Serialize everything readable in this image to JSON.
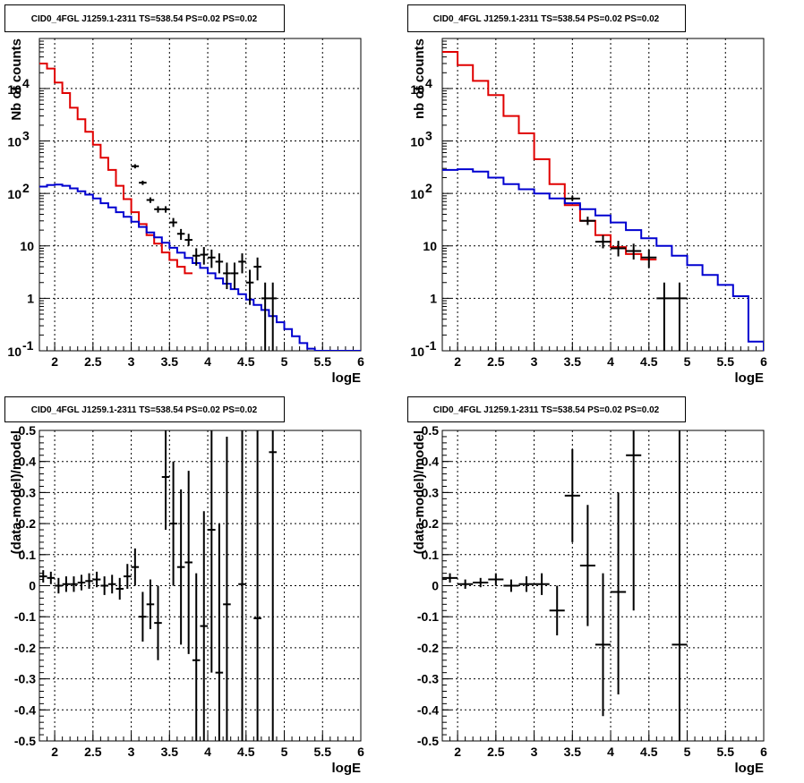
{
  "chart_data": [
    {
      "id": "top-left",
      "type": "line",
      "title": "CID0_4FGL J1259.1-2311 TS=538.54 PS=0.02 PS=0.02",
      "xlabel": "logE",
      "ylabel": "Nb of counts",
      "log_y": true,
      "grid": true,
      "xlim": [
        1.8,
        6.0
      ],
      "ylim": [
        0.1,
        90000
      ],
      "x_ticks": [
        "2",
        "2.5",
        "3",
        "3.5",
        "4",
        "4.5",
        "5",
        "5.5",
        "6"
      ],
      "y_ticks": [
        "10^-1",
        "1",
        "10",
        "10^2",
        "10^3",
        "10^4"
      ],
      "bin_edges": [
        1.8,
        1.9,
        2.0,
        2.1,
        2.2,
        2.3,
        2.4,
        2.5,
        2.6,
        2.7,
        2.8,
        2.9,
        3.0,
        3.1,
        3.2,
        3.3,
        3.4,
        3.5,
        3.6,
        3.7,
        3.8,
        3.9,
        4.0,
        4.1,
        4.2,
        4.3,
        4.4,
        4.5,
        4.6,
        4.7,
        4.8,
        4.9,
        5.0,
        5.1,
        5.2,
        5.3,
        5.4,
        5.5,
        5.6,
        5.7,
        5.8,
        5.9,
        6.0
      ],
      "series": [
        {
          "role": "total-model",
          "color": "#e00000",
          "values": [
            30000,
            24000,
            13000,
            8200,
            4300,
            2600,
            1500,
            850,
            480,
            280,
            140,
            78,
            44,
            26,
            16,
            11,
            7.5,
            5.4,
            4.0,
            3.0
          ]
        },
        {
          "role": "background-model",
          "color": "#0000d0",
          "values": [
            135,
            145,
            148,
            140,
            125,
            110,
            95,
            80,
            65,
            54,
            44,
            36,
            29,
            23,
            18,
            14.5,
            11.5,
            9.2,
            7.4,
            5.9,
            4.7,
            3.8,
            3.0,
            2.4,
            1.9,
            1.5,
            1.2,
            0.95,
            0.75,
            0.6,
            0.46,
            0.35,
            0.26,
            0.19,
            0.14,
            0.11,
            0.1,
            0.1,
            0.1,
            0.1,
            0.1,
            0.1
          ]
        },
        {
          "role": "data",
          "color": "#000000",
          "points": [
            {
              "x": 3.05,
              "xerr": 0.05,
              "y": 330,
              "ylo": 300,
              "yhi": 360
            },
            {
              "x": 3.15,
              "xerr": 0.05,
              "y": 160,
              "ylo": 145,
              "yhi": 175
            },
            {
              "x": 3.25,
              "xerr": 0.05,
              "y": 75,
              "ylo": 66,
              "yhi": 84
            },
            {
              "x": 3.35,
              "xerr": 0.05,
              "y": 50,
              "ylo": 43,
              "yhi": 57
            },
            {
              "x": 3.45,
              "xerr": 0.05,
              "y": 50,
              "ylo": 43,
              "yhi": 57
            },
            {
              "x": 3.55,
              "xerr": 0.05,
              "y": 28,
              "ylo": 23,
              "yhi": 34
            },
            {
              "x": 3.65,
              "xerr": 0.05,
              "y": 17,
              "ylo": 13,
              "yhi": 21
            },
            {
              "x": 3.75,
              "xerr": 0.05,
              "y": 13,
              "ylo": 10,
              "yhi": 17
            },
            {
              "x": 3.85,
              "xerr": 0.05,
              "y": 6.5,
              "ylo": 4.2,
              "yhi": 9
            },
            {
              "x": 3.95,
              "xerr": 0.05,
              "y": 6.8,
              "ylo": 4.4,
              "yhi": 9.5
            },
            {
              "x": 4.05,
              "xerr": 0.05,
              "y": 6.0,
              "ylo": 3.8,
              "yhi": 8.5
            },
            {
              "x": 4.15,
              "xerr": 0.05,
              "y": 5.0,
              "ylo": 3.0,
              "yhi": 7.2
            },
            {
              "x": 4.25,
              "xerr": 0.05,
              "y": 3.0,
              "ylo": 1.5,
              "yhi": 4.8
            },
            {
              "x": 4.35,
              "xerr": 0.05,
              "y": 3.0,
              "ylo": 1.5,
              "yhi": 4.8
            },
            {
              "x": 4.45,
              "xerr": 0.05,
              "y": 5.0,
              "ylo": 3.0,
              "yhi": 7.2
            },
            {
              "x": 4.55,
              "xerr": 0.05,
              "y": 2.0,
              "ylo": 0.75,
              "yhi": 3.5
            },
            {
              "x": 4.65,
              "xerr": 0.05,
              "y": 4.0,
              "ylo": 2.2,
              "yhi": 6.0
            },
            {
              "x": 4.75,
              "xerr": 0.05,
              "y": 1.0,
              "ylo": 0.1,
              "yhi": 2.0
            },
            {
              "x": 4.85,
              "xerr": 0.05,
              "y": 1.0,
              "ylo": 0.1,
              "yhi": 2.0
            }
          ]
        }
      ]
    },
    {
      "id": "top-right",
      "type": "line",
      "title": "CID0_4FGL J1259.1-2311 TS=538.54 PS=0.02 PS=0.02",
      "xlabel": "logE",
      "ylabel": "nb of counts",
      "log_y": true,
      "grid": true,
      "xlim": [
        1.8,
        6.0
      ],
      "ylim": [
        0.1,
        90000
      ],
      "x_ticks": [
        "2",
        "2.5",
        "3",
        "3.5",
        "4",
        "4.5",
        "5",
        "5.5",
        "6"
      ],
      "y_ticks": [
        "10^-1",
        "1",
        "10",
        "10^2",
        "10^3",
        "10^4"
      ],
      "bin_edges": [
        1.8,
        2.0,
        2.2,
        2.4,
        2.6,
        2.8,
        3.0,
        3.2,
        3.4,
        3.6,
        3.8,
        4.0,
        4.2,
        4.4,
        4.6,
        4.8,
        5.0,
        5.2,
        5.4,
        5.6,
        5.8,
        6.0
      ],
      "series": [
        {
          "role": "total-model",
          "color": "#e00000",
          "values": [
            50000,
            28000,
            14000,
            7500,
            3000,
            1400,
            450,
            150,
            60,
            30,
            16,
            9.5,
            7.0,
            5.5
          ]
        },
        {
          "role": "background-model",
          "color": "#0000d0",
          "values": [
            280,
            290,
            260,
            200,
            150,
            120,
            100,
            80,
            65,
            50,
            38,
            28,
            20,
            14,
            10,
            6.5,
            4.3,
            2.8,
            1.8,
            1.1,
            0.15,
            0.1
          ]
        },
        {
          "role": "data",
          "color": "#000000",
          "points": [
            {
              "x": 3.5,
              "xerr": 0.1,
              "y": 80,
              "ylo": 72,
              "yhi": 90
            },
            {
              "x": 3.7,
              "xerr": 0.1,
              "y": 30,
              "ylo": 25,
              "yhi": 36
            },
            {
              "x": 3.9,
              "xerr": 0.1,
              "y": 12,
              "ylo": 9,
              "yhi": 16
            },
            {
              "x": 4.1,
              "xerr": 0.1,
              "y": 9,
              "ylo": 6.3,
              "yhi": 12.5
            },
            {
              "x": 4.3,
              "xerr": 0.1,
              "y": 8,
              "ylo": 5.5,
              "yhi": 11
            },
            {
              "x": 4.5,
              "xerr": 0.1,
              "y": 6,
              "ylo": 3.8,
              "yhi": 8.5
            },
            {
              "x": 4.7,
              "xerr": 0.1,
              "y": 1.0,
              "ylo": 0.1,
              "yhi": 2.0
            },
            {
              "x": 4.9,
              "xerr": 0.1,
              "y": 1.0,
              "ylo": 0.1,
              "yhi": 2.0
            }
          ]
        }
      ]
    },
    {
      "id": "bottom-left",
      "type": "scatter",
      "title": "CID0_4FGL J1259.1-2311 TS=538.54 PS=0.02 PS=0.02",
      "xlabel": "logE",
      "ylabel": "(data-model)/model",
      "log_y": false,
      "grid": true,
      "xlim": [
        1.8,
        6.0
      ],
      "ylim": [
        -0.5,
        0.5
      ],
      "x_ticks": [
        "2",
        "2.5",
        "3",
        "3.5",
        "4",
        "4.5",
        "5",
        "5.5",
        "6"
      ],
      "y_ticks": [
        "-0.5",
        "-0.4",
        "-0.3",
        "-0.2",
        "-0.1",
        "0",
        "0.1",
        "0.2",
        "0.3",
        "0.4",
        "0.5"
      ],
      "series": [
        {
          "role": "residuals",
          "color": "#000000",
          "points": [
            {
              "x": 1.85,
              "xerr": 0.05,
              "y": 0.03,
              "ylo": 0.01,
              "yhi": 0.05
            },
            {
              "x": 1.95,
              "xerr": 0.05,
              "y": 0.025,
              "ylo": 0.005,
              "yhi": 0.045
            },
            {
              "x": 2.05,
              "xerr": 0.05,
              "y": 0.0,
              "ylo": -0.025,
              "yhi": 0.025
            },
            {
              "x": 2.15,
              "xerr": 0.05,
              "y": 0.005,
              "ylo": -0.02,
              "yhi": 0.03
            },
            {
              "x": 2.25,
              "xerr": 0.05,
              "y": 0.005,
              "ylo": -0.02,
              "yhi": 0.03
            },
            {
              "x": 2.35,
              "xerr": 0.05,
              "y": 0.01,
              "ylo": -0.015,
              "yhi": 0.035
            },
            {
              "x": 2.45,
              "xerr": 0.05,
              "y": 0.015,
              "ylo": -0.01,
              "yhi": 0.04
            },
            {
              "x": 2.55,
              "xerr": 0.05,
              "y": 0.02,
              "ylo": -0.005,
              "yhi": 0.045
            },
            {
              "x": 2.65,
              "xerr": 0.05,
              "y": 0.0,
              "ylo": -0.03,
              "yhi": 0.03
            },
            {
              "x": 2.75,
              "xerr": 0.05,
              "y": 0.005,
              "ylo": -0.025,
              "yhi": 0.035
            },
            {
              "x": 2.85,
              "xerr": 0.05,
              "y": -0.01,
              "ylo": -0.045,
              "yhi": 0.025
            },
            {
              "x": 2.95,
              "xerr": 0.05,
              "y": 0.03,
              "ylo": -0.01,
              "yhi": 0.07
            },
            {
              "x": 3.05,
              "xerr": 0.05,
              "y": 0.06,
              "ylo": 0.0,
              "yhi": 0.12
            },
            {
              "x": 3.15,
              "xerr": 0.05,
              "y": -0.1,
              "ylo": -0.18,
              "yhi": -0.02
            },
            {
              "x": 3.25,
              "xerr": 0.05,
              "y": -0.06,
              "ylo": -0.14,
              "yhi": 0.02
            },
            {
              "x": 3.35,
              "xerr": 0.05,
              "y": -0.12,
              "ylo": -0.24,
              "yhi": 0.0
            },
            {
              "x": 3.45,
              "xerr": 0.05,
              "y": 0.35,
              "ylo": 0.18,
              "yhi": 0.5
            },
            {
              "x": 3.55,
              "xerr": 0.05,
              "y": 0.2,
              "ylo": 0.0,
              "yhi": 0.4
            },
            {
              "x": 3.65,
              "xerr": 0.05,
              "y": 0.06,
              "ylo": -0.19,
              "yhi": 0.31
            },
            {
              "x": 3.75,
              "xerr": 0.05,
              "y": 0.075,
              "ylo": -0.22,
              "yhi": 0.37
            },
            {
              "x": 3.85,
              "xerr": 0.05,
              "y": -0.24,
              "ylo": -0.5,
              "yhi": 0.04
            },
            {
              "x": 3.95,
              "xerr": 0.05,
              "y": -0.13,
              "ylo": -0.5,
              "yhi": 0.24
            },
            {
              "x": 4.05,
              "xerr": 0.05,
              "y": 0.18,
              "ylo": -0.28,
              "yhi": 0.5
            },
            {
              "x": 4.15,
              "xerr": 0.05,
              "y": -0.28,
              "ylo": -0.5,
              "yhi": 0.2
            },
            {
              "x": 4.25,
              "xerr": 0.05,
              "y": -0.06,
              "ylo": -0.5,
              "yhi": 0.48
            },
            {
              "x": 4.45,
              "xerr": 0.05,
              "y": 0.005,
              "ylo": -0.5,
              "yhi": 0.5
            },
            {
              "x": 4.65,
              "xerr": 0.05,
              "y": -0.105,
              "ylo": -0.5,
              "yhi": 0.5
            },
            {
              "x": 4.85,
              "xerr": 0.05,
              "y": 0.43,
              "ylo": -0.5,
              "yhi": 0.5
            }
          ]
        }
      ]
    },
    {
      "id": "bottom-right",
      "type": "scatter",
      "title": "CID0_4FGL J1259.1-2311 TS=538.54 PS=0.02 PS=0.02",
      "xlabel": "logE",
      "ylabel": "(data-model)/model",
      "log_y": false,
      "grid": true,
      "xlim": [
        1.8,
        6.0
      ],
      "ylim": [
        -0.5,
        0.5
      ],
      "x_ticks": [
        "2",
        "2.5",
        "3",
        "3.5",
        "4",
        "4.5",
        "5",
        "5.5",
        "6"
      ],
      "y_ticks": [
        "-0.5",
        "-0.4",
        "-0.3",
        "-0.2",
        "-0.1",
        "0",
        "0.1",
        "0.2",
        "0.3",
        "0.4",
        "0.5"
      ],
      "series": [
        {
          "role": "residuals",
          "color": "#000000",
          "points": [
            {
              "x": 1.9,
              "xerr": 0.1,
              "y": 0.025,
              "ylo": 0.01,
              "yhi": 0.04
            },
            {
              "x": 2.1,
              "xerr": 0.1,
              "y": 0.005,
              "ylo": -0.01,
              "yhi": 0.02
            },
            {
              "x": 2.3,
              "xerr": 0.1,
              "y": 0.01,
              "ylo": -0.005,
              "yhi": 0.025
            },
            {
              "x": 2.5,
              "xerr": 0.1,
              "y": 0.02,
              "ylo": 0.0,
              "yhi": 0.04
            },
            {
              "x": 2.7,
              "xerr": 0.1,
              "y": 0.0,
              "ylo": -0.02,
              "yhi": 0.02
            },
            {
              "x": 2.9,
              "xerr": 0.1,
              "y": 0.005,
              "ylo": -0.02,
              "yhi": 0.03
            },
            {
              "x": 3.1,
              "xerr": 0.1,
              "y": 0.005,
              "ylo": -0.03,
              "yhi": 0.04
            },
            {
              "x": 3.3,
              "xerr": 0.1,
              "y": -0.08,
              "ylo": -0.16,
              "yhi": 0.0
            },
            {
              "x": 3.5,
              "xerr": 0.1,
              "y": 0.29,
              "ylo": 0.14,
              "yhi": 0.44
            },
            {
              "x": 3.7,
              "xerr": 0.1,
              "y": 0.065,
              "ylo": -0.13,
              "yhi": 0.26
            },
            {
              "x": 3.9,
              "xerr": 0.1,
              "y": -0.19,
              "ylo": -0.42,
              "yhi": 0.04
            },
            {
              "x": 4.1,
              "xerr": 0.1,
              "y": -0.02,
              "ylo": -0.35,
              "yhi": 0.3
            },
            {
              "x": 4.3,
              "xerr": 0.1,
              "y": 0.42,
              "ylo": -0.08,
              "yhi": 0.5
            },
            {
              "x": 4.9,
              "xerr": 0.1,
              "y": -0.19,
              "ylo": -0.5,
              "yhi": 0.5
            }
          ]
        }
      ]
    }
  ]
}
